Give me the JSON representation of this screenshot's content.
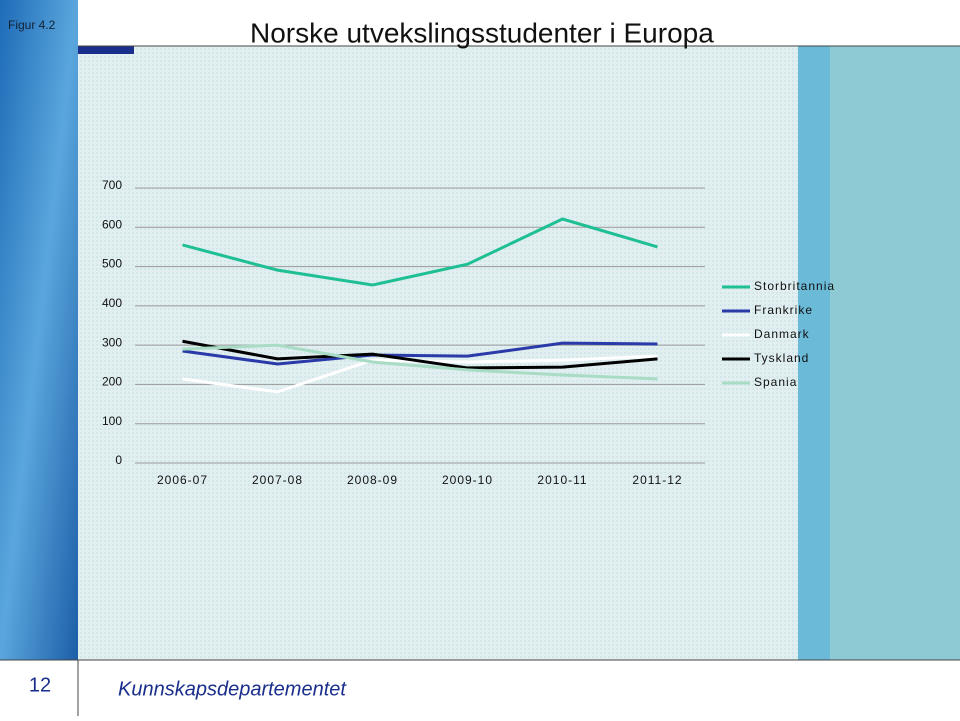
{
  "header": {
    "label": "Figur 4.2"
  },
  "footer": {
    "page": "12",
    "org": "Kunnskapsdepartementet"
  },
  "chart_data": {
    "type": "line",
    "title": "Norske utvekslingsstudenter i Europa",
    "categories": [
      "2006-07",
      "2007-08",
      "2008-09",
      "2009-10",
      "2010-11",
      "2011-12"
    ],
    "series": [
      {
        "name": "Storbritannia",
        "color": "#1fbf94",
        "values": [
          555,
          491,
          453,
          506,
          621,
          550
        ]
      },
      {
        "name": "Frankrike",
        "color": "#2a3aa8",
        "values": [
          285,
          252,
          275,
          272,
          305,
          303
        ]
      },
      {
        "name": "Danmark",
        "color": "#ffffff",
        "values": [
          214,
          181,
          262,
          257,
          262,
          272
        ]
      },
      {
        "name": "Tyskland",
        "color": "#000000",
        "values": [
          310,
          265,
          277,
          242,
          244,
          265
        ]
      },
      {
        "name": "Spania",
        "color": "#a8dcc4",
        "values": [
          290,
          300,
          257,
          237,
          224,
          214
        ]
      }
    ],
    "ylim": [
      0,
      700
    ],
    "yticks": [
      0,
      100,
      200,
      300,
      400,
      500,
      600,
      700
    ],
    "grid": true,
    "legend": "right"
  }
}
